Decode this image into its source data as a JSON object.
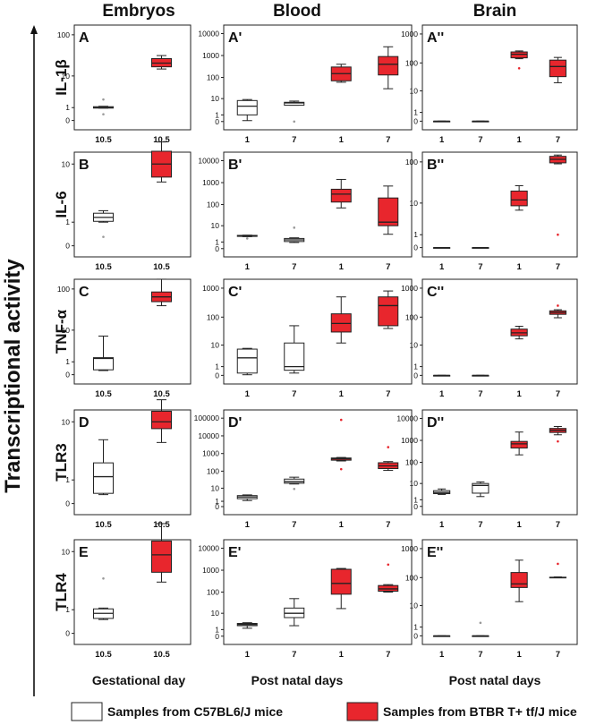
{
  "figure": {
    "y_axis_label": "Transcriptional activity",
    "columns": [
      {
        "title": "Embryos",
        "x_axis_label": "Gestational day"
      },
      {
        "title": "Blood",
        "x_axis_label": "Post natal days"
      },
      {
        "title": "Brain",
        "x_axis_label": "Post natal days"
      }
    ],
    "rows": [
      "IL-1β",
      "IL-6",
      "TNF-α",
      "TLR3",
      "TLR4"
    ],
    "legend": [
      {
        "label": "Samples from C57BL6/J mice",
        "color": "#ffffff"
      },
      {
        "label": "Samples from BTBR T+ tf/J mice",
        "color": "#e8262d"
      }
    ],
    "colors": {
      "c57": "#ffffff",
      "btbr": "#e8262d",
      "stroke": "#222222"
    }
  },
  "chart_data": [
    {
      "type": "box",
      "panel": "A",
      "row": "IL-1β",
      "column": "Embryos",
      "scale": "log1p",
      "yticks": [
        "0",
        "1",
        "10",
        "100"
      ],
      "categories": [
        "10.5",
        "10.5"
      ],
      "boxes": [
        {
          "group": "c57",
          "min": 0.95,
          "q1": 0.95,
          "median": 1.0,
          "q3": 1.1,
          "max": 1.15,
          "outliers": [
            0.4,
            2.1
          ]
        },
        {
          "group": "btbr",
          "min": 15,
          "q1": 17,
          "median": 21,
          "q3": 27,
          "max": 32,
          "outliers": []
        }
      ]
    },
    {
      "type": "box",
      "panel": "A'",
      "row": "IL-1β",
      "column": "Blood",
      "scale": "log1p",
      "yticks": [
        "0",
        "1",
        "10",
        "100",
        "1000",
        "10000"
      ],
      "categories": [
        "1",
        "7",
        "1",
        "7"
      ],
      "boxes": [
        {
          "group": "c57",
          "min": 0.1,
          "q1": 1,
          "median": 4,
          "q3": 8,
          "max": 9,
          "outliers": []
        },
        {
          "group": "c57",
          "min": 4.5,
          "q1": 4.5,
          "median": 6,
          "q3": 6.5,
          "max": 7.5,
          "outliers": [
            0
          ]
        },
        {
          "group": "btbr",
          "min": 60,
          "q1": 70,
          "median": 150,
          "q3": 300,
          "max": 400,
          "outliers": []
        },
        {
          "group": "btbr",
          "min": 30,
          "q1": 130,
          "median": 400,
          "q3": 900,
          "max": 2500,
          "outliers": []
        }
      ]
    },
    {
      "type": "box",
      "panel": "A''",
      "row": "IL-1β",
      "column": "Brain",
      "scale": "log1p",
      "yticks": [
        "0",
        "1",
        "10",
        "100",
        "1000"
      ],
      "categories": [
        "1",
        "7",
        "1",
        "7"
      ],
      "boxes": [
        {
          "group": "c57",
          "min": 0,
          "q1": 0,
          "median": 0,
          "q3": 0,
          "max": 0,
          "outliers": []
        },
        {
          "group": "c57",
          "min": 0,
          "q1": 0,
          "median": 0,
          "q3": 0,
          "max": 0,
          "outliers": []
        },
        {
          "group": "btbr",
          "min": 140,
          "q1": 150,
          "median": 200,
          "q3": 240,
          "max": 260,
          "outliers": [
            65
          ]
        },
        {
          "group": "btbr",
          "min": 20,
          "q1": 33,
          "median": 75,
          "q3": 125,
          "max": 155,
          "outliers": []
        }
      ]
    },
    {
      "type": "box",
      "panel": "B",
      "row": "IL-6",
      "column": "Embryos",
      "scale": "log1p",
      "yticks": [
        "0",
        "1",
        "10"
      ],
      "categories": [
        "10.5",
        "10.5"
      ],
      "boxes": [
        {
          "group": "c57",
          "min": 1.0,
          "q1": 1.05,
          "median": 1.3,
          "q3": 1.6,
          "max": 1.8,
          "outliers": [
            0.3
          ]
        },
        {
          "group": "btbr",
          "min": 5.5,
          "q1": 6.5,
          "median": 10,
          "q3": 15,
          "max": 20,
          "outliers": []
        }
      ]
    },
    {
      "type": "box",
      "panel": "B'",
      "row": "IL-6",
      "column": "Blood",
      "scale": "log1p",
      "yticks": [
        "0",
        "1",
        "10",
        "100",
        "1000",
        "10000"
      ],
      "categories": [
        "1",
        "7",
        "1",
        "7"
      ],
      "boxes": [
        {
          "group": "c57",
          "min": 2.5,
          "q1": 2.6,
          "median": 2.8,
          "q3": 3.0,
          "max": 3.1,
          "outliers": [
            1.9
          ]
        },
        {
          "group": "c57",
          "min": 0.9,
          "q1": 1.1,
          "median": 1.5,
          "q3": 1.9,
          "max": 2.1,
          "outliers": [
            8
          ]
        },
        {
          "group": "btbr",
          "min": 70,
          "q1": 130,
          "median": 300,
          "q3": 500,
          "max": 1400,
          "outliers": []
        },
        {
          "group": "btbr",
          "min": 3.5,
          "q1": 10,
          "median": 15,
          "q3": 200,
          "max": 700,
          "outliers": []
        }
      ]
    },
    {
      "type": "box",
      "panel": "B''",
      "row": "IL-6",
      "column": "Brain",
      "scale": "log1p",
      "yticks": [
        "0",
        "1",
        "10",
        "100"
      ],
      "categories": [
        "1",
        "7",
        "1",
        "7"
      ],
      "boxes": [
        {
          "group": "c57",
          "min": 0,
          "q1": 0,
          "median": 0,
          "q3": 0,
          "max": 0,
          "outliers": []
        },
        {
          "group": "c57",
          "min": 0,
          "q1": 0,
          "median": 0,
          "q3": 0,
          "max": 0,
          "outliers": []
        },
        {
          "group": "btbr",
          "min": 6.5,
          "q1": 8.5,
          "median": 12,
          "q3": 20,
          "max": 27,
          "outliers": []
        },
        {
          "group": "btbr",
          "min": 90,
          "q1": 95,
          "median": 115,
          "q3": 135,
          "max": 145,
          "outliers": [
            1
          ]
        }
      ]
    },
    {
      "type": "box",
      "panel": "C",
      "row": "TNF-α",
      "column": "Embryos",
      "scale": "log1p",
      "yticks": [
        "0",
        "1",
        "10",
        "100"
      ],
      "categories": [
        "10.5",
        "10.5"
      ],
      "boxes": [
        {
          "group": "c57",
          "min": 0.25,
          "q1": 0.3,
          "median": 1.4,
          "q3": 1.5,
          "max": 7,
          "outliers": []
        },
        {
          "group": "btbr",
          "min": 40,
          "q1": 50,
          "median": 65,
          "q3": 85,
          "max": 170,
          "outliers": []
        }
      ]
    },
    {
      "type": "box",
      "panel": "C'",
      "row": "TNF-α",
      "column": "Blood",
      "scale": "log1p",
      "yticks": [
        "0",
        "1",
        "10",
        "100",
        "1000"
      ],
      "categories": [
        "1",
        "7",
        "1",
        "7"
      ],
      "boxes": [
        {
          "group": "c57",
          "min": 0.05,
          "q1": 0.2,
          "median": 3,
          "q3": 7,
          "max": 7.5,
          "outliers": []
        },
        {
          "group": "c57",
          "min": 0.2,
          "q1": 0.5,
          "median": 1,
          "q3": 12,
          "max": 50,
          "outliers": []
        },
        {
          "group": "btbr",
          "min": 12,
          "q1": 30,
          "median": 60,
          "q3": 130,
          "max": 500,
          "outliers": []
        },
        {
          "group": "btbr",
          "min": 40,
          "q1": 50,
          "median": 250,
          "q3": 500,
          "max": 800,
          "outliers": []
        }
      ]
    },
    {
      "type": "box",
      "panel": "C''",
      "row": "TNF-α",
      "column": "Brain",
      "scale": "log1p",
      "yticks": [
        "0",
        "1",
        "10",
        "100",
        "1000"
      ],
      "categories": [
        "1",
        "7",
        "1",
        "7"
      ],
      "boxes": [
        {
          "group": "c57",
          "min": 0,
          "q1": 0,
          "median": 0,
          "q3": 0,
          "max": 0,
          "outliers": []
        },
        {
          "group": "c57",
          "min": 0,
          "q1": 0,
          "median": 0,
          "q3": 0,
          "max": 0,
          "outliers": []
        },
        {
          "group": "btbr",
          "min": 17,
          "q1": 22,
          "median": 28,
          "q3": 38,
          "max": 48,
          "outliers": []
        },
        {
          "group": "btbr",
          "min": 95,
          "q1": 125,
          "median": 145,
          "q3": 165,
          "max": 180,
          "outliers": [
            250
          ]
        }
      ]
    },
    {
      "type": "box",
      "panel": "D",
      "row": "TLR3",
      "column": "Embryos",
      "scale": "log1p",
      "yticks": [
        "0",
        "1",
        "10"
      ],
      "categories": [
        "10.5",
        "10.5"
      ],
      "boxes": [
        {
          "group": "c57",
          "min": 0.3,
          "q1": 0.35,
          "median": 1.2,
          "q3": 2.3,
          "max": 5.5,
          "outliers": []
        },
        {
          "group": "btbr",
          "min": 5,
          "q1": 8,
          "median": 10,
          "q3": 14,
          "max": 20,
          "outliers": []
        }
      ]
    },
    {
      "type": "box",
      "panel": "D'",
      "row": "TLR3",
      "column": "Blood",
      "scale": "log1p",
      "yticks": [
        "0",
        "1",
        "10",
        "100",
        "1000",
        "10000",
        "100000"
      ],
      "categories": [
        "1",
        "7",
        "1",
        "7"
      ],
      "boxes": [
        {
          "group": "c57",
          "min": 1.2,
          "q1": 1.8,
          "median": 2.5,
          "q3": 3.2,
          "max": 3.6,
          "outliers": []
        },
        {
          "group": "c57",
          "min": 18,
          "q1": 20,
          "median": 25,
          "q3": 35,
          "max": 45,
          "outliers": [
            9
          ]
        },
        {
          "group": "btbr",
          "min": 380,
          "q1": 420,
          "median": 500,
          "q3": 560,
          "max": 600,
          "outliers": [
            130,
            80000
          ]
        },
        {
          "group": "btbr",
          "min": 110,
          "q1": 140,
          "median": 200,
          "q3": 300,
          "max": 350,
          "outliers": [
            2300
          ]
        }
      ]
    },
    {
      "type": "box",
      "panel": "D''",
      "row": "TLR3",
      "column": "Brain",
      "scale": "log1p",
      "yticks": [
        "0",
        "1",
        "10",
        "100",
        "1000",
        "10000"
      ],
      "categories": [
        "1",
        "7",
        "1",
        "7"
      ],
      "boxes": [
        {
          "group": "c57",
          "min": 2.5,
          "q1": 2.8,
          "median": 3.3,
          "q3": 4.2,
          "max": 5.2,
          "outliers": []
        },
        {
          "group": "c57",
          "min": 1.8,
          "q1": 3,
          "median": 8,
          "q3": 10,
          "max": 12,
          "outliers": []
        },
        {
          "group": "btbr",
          "min": 220,
          "q1": 450,
          "median": 700,
          "q3": 900,
          "max": 2400,
          "outliers": []
        },
        {
          "group": "btbr",
          "min": 1800,
          "q1": 2300,
          "median": 2900,
          "q3": 3500,
          "max": 4300,
          "outliers": [
            900
          ]
        }
      ]
    },
    {
      "type": "box",
      "panel": "E",
      "row": "TLR4",
      "column": "Embryos",
      "scale": "log1p",
      "yticks": [
        "0",
        "1",
        "10"
      ],
      "categories": [
        "10.5",
        "10.5"
      ],
      "boxes": [
        {
          "group": "c57",
          "min": 0.5,
          "q1": 0.55,
          "median": 0.8,
          "q3": 1.05,
          "max": 1.1,
          "outliers": [
            4
          ]
        },
        {
          "group": "btbr",
          "min": 3.5,
          "q1": 5,
          "median": 9,
          "q3": 14,
          "max": 24,
          "outliers": []
        }
      ]
    },
    {
      "type": "box",
      "panel": "E'",
      "row": "TLR4",
      "column": "Blood",
      "scale": "log1p",
      "yticks": [
        "0",
        "1",
        "10",
        "100",
        "1000",
        "10000"
      ],
      "categories": [
        "1",
        "7",
        "1",
        "7"
      ],
      "boxes": [
        {
          "group": "c57",
          "min": 1.3,
          "q1": 2,
          "median": 2.4,
          "q3": 2.8,
          "max": 3.1,
          "outliers": []
        },
        {
          "group": "c57",
          "min": 2,
          "q1": 6,
          "median": 10,
          "q3": 18,
          "max": 50,
          "outliers": []
        },
        {
          "group": "btbr",
          "min": 17,
          "q1": 80,
          "median": 250,
          "q3": 1100,
          "max": 1200,
          "outliers": []
        },
        {
          "group": "btbr",
          "min": 100,
          "q1": 110,
          "median": 140,
          "q3": 200,
          "max": 220,
          "outliers": [
            1800
          ]
        }
      ]
    },
    {
      "type": "box",
      "panel": "E''",
      "row": "TLR4",
      "column": "Brain",
      "scale": "log1p",
      "yticks": [
        "0",
        "1",
        "10",
        "100",
        "1000"
      ],
      "categories": [
        "1",
        "7",
        "1",
        "7"
      ],
      "boxes": [
        {
          "group": "c57",
          "min": 0,
          "q1": 0,
          "median": 0,
          "q3": 0,
          "max": 0,
          "outliers": []
        },
        {
          "group": "c57",
          "min": 0,
          "q1": 0,
          "median": 0,
          "q3": 0,
          "max": 0,
          "outliers": [
            1.8
          ]
        },
        {
          "group": "btbr",
          "min": 14,
          "q1": 45,
          "median": 60,
          "q3": 150,
          "max": 400,
          "outliers": []
        },
        {
          "group": "btbr",
          "min": 100,
          "q1": 100,
          "median": 100,
          "q3": 103,
          "max": 105,
          "outliers": [
            300
          ]
        }
      ]
    }
  ]
}
